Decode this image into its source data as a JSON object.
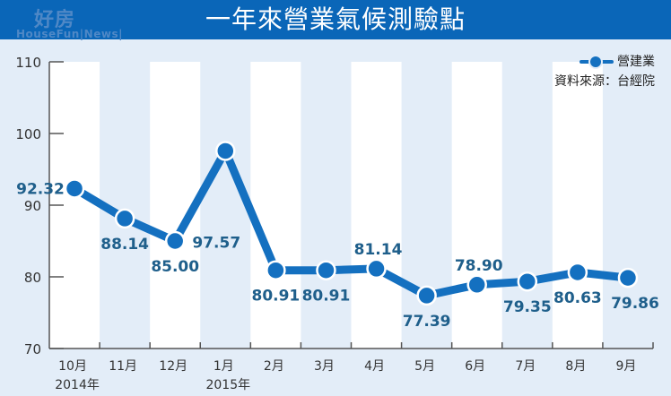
{
  "header": {
    "title": "一年來營業氣候測驗點",
    "logo_cn": "好房",
    "logo_en": "HouseFun|News|"
  },
  "legend": {
    "series_label": "營建業",
    "source": "資料來源：台經院"
  },
  "colors": {
    "header_bg": "#0a66b8",
    "line": "#1470c0",
    "label": "#1f5f8b",
    "band_light": "#e3edf8",
    "band_white": "#ffffff"
  },
  "chart_data": {
    "type": "line",
    "title": "一年來營業氣候測驗點",
    "xlabel": "",
    "ylabel": "",
    "categories": [
      "10月\n2014年",
      "11月",
      "12月",
      "1月\n2015年",
      "2月",
      "3月",
      "4月",
      "5月",
      "6月",
      "7月",
      "8月",
      "9月"
    ],
    "x_labels": [
      "10月",
      "11月",
      "12月",
      "1月",
      "2月",
      "3月",
      "4月",
      "5月",
      "6月",
      "7月",
      "8月",
      "9月"
    ],
    "x_year_labels": {
      "0": "2014年",
      "3": "2015年"
    },
    "series": [
      {
        "name": "營建業",
        "values": [
          92.32,
          88.14,
          85.0,
          97.57,
          80.91,
          80.91,
          81.14,
          77.39,
          78.9,
          79.35,
          80.63,
          79.86
        ]
      }
    ],
    "value_labels": [
      "92.32",
      "88.14",
      "85.00",
      "97.57",
      "80.91",
      "80.91",
      "81.14",
      "77.39",
      "78.90",
      "79.35",
      "80.63",
      "79.86"
    ],
    "label_positions": [
      "left",
      "below",
      "below",
      "below-left",
      "below",
      "below",
      "above",
      "below",
      "above",
      "below",
      "below",
      "below-right"
    ],
    "yticks": [
      70,
      80,
      90,
      100,
      110
    ],
    "ylim": [
      70,
      110
    ],
    "grid": false,
    "alternating_column_bands": true,
    "legend_position": "top-right",
    "source": "資料來源：台經院"
  }
}
